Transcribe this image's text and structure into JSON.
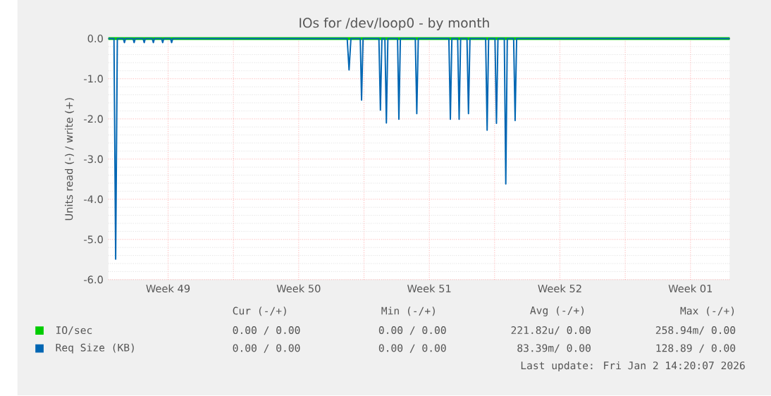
{
  "chart_data": {
    "type": "line",
    "title": "IOs for /dev/loop0 - by month",
    "ylabel": "Units read (-) / write (+)",
    "xlim": [
      "2025-12-01T07:12",
      "2026-01-03T14:24"
    ],
    "ylim": [
      -6,
      0
    ],
    "xticks": [
      {
        "value": "2025-12-04T12:00",
        "label": "Week 49"
      },
      {
        "value": "2025-12-08",
        "label": null
      },
      {
        "value": "2025-12-11T12:00",
        "label": "Week 50"
      },
      {
        "value": "2025-12-15",
        "label": null
      },
      {
        "value": "2025-12-18T12:00",
        "label": "Week 51"
      },
      {
        "value": "2025-12-22",
        "label": null
      },
      {
        "value": "2025-12-25T12:00",
        "label": "Week 52"
      },
      {
        "value": "2025-12-29",
        "label": null
      },
      {
        "value": "2026-01-01T12:00",
        "label": "Week 01"
      }
    ],
    "yticks": [
      {
        "value": -6,
        "label": "-6.0"
      },
      {
        "value": -5,
        "label": "-5.0"
      },
      {
        "value": -4,
        "label": "-4.0"
      },
      {
        "value": -3,
        "label": "-3.0"
      },
      {
        "value": -2,
        "label": "-2.0"
      },
      {
        "value": -1,
        "label": "-1.0"
      },
      {
        "value": 0,
        "label": "0.0"
      }
    ],
    "grid": true,
    "legend": "bottom",
    "ref_lines": [
      {
        "axis": "y",
        "value": 0,
        "color": "#000000"
      }
    ],
    "series": [
      {
        "name": "IO/sec",
        "color": "#00cc00",
        "x": [
          "2025-12-01T07:12",
          "2026-01-03T14:24"
        ],
        "values": [
          0,
          0
        ]
      },
      {
        "name": "Req Size (KB)",
        "color": "#0066b3",
        "x": [
          "2025-12-01T07:12",
          "2025-12-01T14:24",
          "2025-12-01T16:34",
          "2025-12-01T18:43",
          "2025-12-02T02:24",
          "2025-12-02T03:50",
          "2025-12-02T05:17",
          "2025-12-02T14:53",
          "2025-12-02T16:19",
          "2025-12-02T17:46",
          "2025-12-03T03:50",
          "2025-12-03T05:17",
          "2025-12-03T06:43",
          "2025-12-03T15:36",
          "2025-12-03T17:02",
          "2025-12-03T18:29",
          "2025-12-04T03:36",
          "2025-12-04T05:02",
          "2025-12-04T06:29",
          "2025-12-04T15:07",
          "2025-12-04T16:34",
          "2025-12-04T18:00",
          "2025-12-14T02:24",
          "2025-12-14T04:48",
          "2025-12-14T07:12",
          "2025-12-14T19:12",
          "2025-12-14T20:53",
          "2025-12-14T22:48",
          "2025-12-15T19:12",
          "2025-12-15T21:07",
          "2025-12-15T23:02",
          "2025-12-16T02:53",
          "2025-12-16T04:48",
          "2025-12-16T06:43",
          "2025-12-16T19:12",
          "2025-12-16T20:53",
          "2025-12-16T22:48",
          "2025-12-17T18:00",
          "2025-12-17T19:55",
          "2025-12-17T21:50",
          "2025-12-19T13:12",
          "2025-12-19T15:07",
          "2025-12-19T17:02",
          "2025-12-20T00:29",
          "2025-12-20T02:24",
          "2025-12-20T04:19",
          "2025-12-20T12:29",
          "2025-12-20T14:24",
          "2025-12-20T16:19",
          "2025-12-21T12:29",
          "2025-12-21T14:24",
          "2025-12-21T16:19",
          "2025-12-22T00:29",
          "2025-12-22T02:24",
          "2025-12-22T04:19",
          "2025-12-22T12:29",
          "2025-12-22T14:24",
          "2025-12-22T16:19",
          "2025-12-23T00:29",
          "2025-12-23T02:24",
          "2025-12-23T04:19",
          "2026-01-03T14:24"
        ],
        "values": [
          0,
          0,
          -5.49,
          0,
          0,
          -0.1,
          0,
          0,
          -0.1,
          0,
          0,
          -0.1,
          0,
          0,
          -0.1,
          0,
          0,
          -0.1,
          0,
          0,
          -0.1,
          0,
          0,
          -0.78,
          0,
          0,
          -1.53,
          0,
          0,
          -1.78,
          0,
          0,
          -2.1,
          0,
          0,
          -2.01,
          0,
          0,
          -1.87,
          0,
          0,
          -2.01,
          0,
          0,
          -2.01,
          0,
          0,
          -1.87,
          0,
          0,
          -2.28,
          0,
          0,
          -2.11,
          0,
          0,
          -3.62,
          0,
          0,
          -2.04,
          0,
          0
        ]
      }
    ],
    "annotations": [
      "Cur (-/+)",
      "Min (-/+)",
      "Avg (-/+)",
      "Max (-/+)",
      "0.00 /  0.00",
      "0.00 /  0.00",
      "221.82u/  0.00",
      "258.94m/  0.00",
      "0.00 /  0.00",
      "0.00 /  0.00",
      "83.39m/  0.00",
      "128.89 /  0.00",
      "Last update: Fri Jan  2 14:20:07 2026"
    ]
  }
}
